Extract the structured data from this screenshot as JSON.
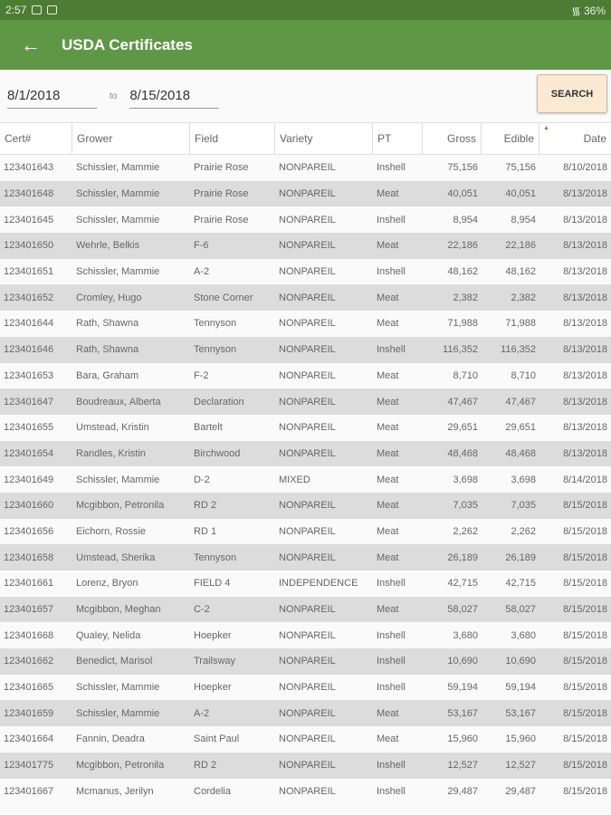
{
  "status_bar": {
    "time": "2:57",
    "battery": "36%"
  },
  "app_bar": {
    "title": "USDA Certificates"
  },
  "filter": {
    "from": "8/1/2018",
    "to_label": "to",
    "to": "8/15/2018",
    "search_label": "SEARCH"
  },
  "table": {
    "columns": [
      "Cert#",
      "Grower",
      "Field",
      "Variety",
      "PT",
      "Gross",
      "Edible",
      "Date"
    ],
    "sorted_column": "Date",
    "rows": [
      [
        "123401643",
        "Schissler, Mammie",
        "Prairie Rose",
        "NONPAREIL",
        "Inshell",
        "75,156",
        "75,156",
        "8/10/2018"
      ],
      [
        "123401648",
        "Schissler, Mammie",
        "Prairie Rose",
        "NONPAREIL",
        "Meat",
        "40,051",
        "40,051",
        "8/13/2018"
      ],
      [
        "123401645",
        "Schissler, Mammie",
        "Prairie Rose",
        "NONPAREIL",
        "Inshell",
        "8,954",
        "8,954",
        "8/13/2018"
      ],
      [
        "123401650",
        "Wehrle, Belkis",
        "F-6",
        "NONPAREIL",
        "Meat",
        "22,186",
        "22,186",
        "8/13/2018"
      ],
      [
        "123401651",
        "Schissler, Mammie",
        "A-2",
        "NONPAREIL",
        "Inshell",
        "48,162",
        "48,162",
        "8/13/2018"
      ],
      [
        "123401652",
        "Cromley, Hugo",
        "Stone Corner",
        "NONPAREIL",
        "Meat",
        "2,382",
        "2,382",
        "8/13/2018"
      ],
      [
        "123401644",
        "Rath, Shawna",
        "Tennyson",
        "NONPAREIL",
        "Meat",
        "71,988",
        "71,988",
        "8/13/2018"
      ],
      [
        "123401646",
        "Rath, Shawna",
        "Tennyson",
        "NONPAREIL",
        "Inshell",
        "116,352",
        "116,352",
        "8/13/2018"
      ],
      [
        "123401653",
        "Bara, Graham",
        "F-2",
        "NONPAREIL",
        "Meat",
        "8,710",
        "8,710",
        "8/13/2018"
      ],
      [
        "123401647",
        "Boudreaux, Alberta",
        "Declaration",
        "NONPAREIL",
        "Meat",
        "47,467",
        "47,467",
        "8/13/2018"
      ],
      [
        "123401655",
        "Umstead, Kristin",
        "Bartelt",
        "NONPAREIL",
        "Meat",
        "29,651",
        "29,651",
        "8/13/2018"
      ],
      [
        "123401654",
        "Randles, Kristin",
        "Birchwood",
        "NONPAREIL",
        "Meat",
        "48,468",
        "48,468",
        "8/13/2018"
      ],
      [
        "123401649",
        "Schissler, Mammie",
        "D-2",
        "MIXED",
        "Meat",
        "3,698",
        "3,698",
        "8/14/2018"
      ],
      [
        "123401660",
        "Mcgibbon, Petronila",
        "RD 2",
        "NONPAREIL",
        "Meat",
        "7,035",
        "7,035",
        "8/15/2018"
      ],
      [
        "123401656",
        "Eichorn, Rossie",
        "RD 1",
        "NONPAREIL",
        "Meat",
        "2,262",
        "2,262",
        "8/15/2018"
      ],
      [
        "123401658",
        "Umstead, Sherika",
        "Tennyson",
        "NONPAREIL",
        "Meat",
        "26,189",
        "26,189",
        "8/15/2018"
      ],
      [
        "123401661",
        "Lorenz, Bryon",
        "FIELD 4",
        "INDEPENDENCE",
        "Inshell",
        "42,715",
        "42,715",
        "8/15/2018"
      ],
      [
        "123401657",
        "Mcgibbon, Meghan",
        "C-2",
        "NONPAREIL",
        "Meat",
        "58,027",
        "58,027",
        "8/15/2018"
      ],
      [
        "123401668",
        "Qualey, Nelida",
        "Hoepker",
        "NONPAREIL",
        "Inshell",
        "3,680",
        "3,680",
        "8/15/2018"
      ],
      [
        "123401662",
        "Benedict, Marisol",
        "Trailsway",
        "NONPAREIL",
        "Inshell",
        "10,690",
        "10,690",
        "8/15/2018"
      ],
      [
        "123401665",
        "Schissler, Mammie",
        "Hoepker",
        "NONPAREIL",
        "Inshell",
        "59,194",
        "59,194",
        "8/15/2018"
      ],
      [
        "123401659",
        "Schissler, Mammie",
        "A-2",
        "NONPAREIL",
        "Meat",
        "53,167",
        "53,167",
        "8/15/2018"
      ],
      [
        "123401664",
        "Fannin, Deadra",
        "Saint Paul",
        "NONPAREIL",
        "Meat",
        "15,960",
        "15,960",
        "8/15/2018"
      ],
      [
        "123401775",
        "Mcgibbon, Petronila",
        "RD 2",
        "NONPAREIL",
        "Inshell",
        "12,527",
        "12,527",
        "8/15/2018"
      ],
      [
        "123401667",
        "Mcmanus, Jerilyn",
        "Cordelia",
        "NONPAREIL",
        "Inshell",
        "29,487",
        "29,487",
        "8/15/2018"
      ]
    ]
  },
  "colors": {
    "status_bar": "#4d7c35",
    "app_bar": "#5f9747",
    "search_button": "#fbe9d3",
    "row_alt": "#dcdcdc"
  }
}
